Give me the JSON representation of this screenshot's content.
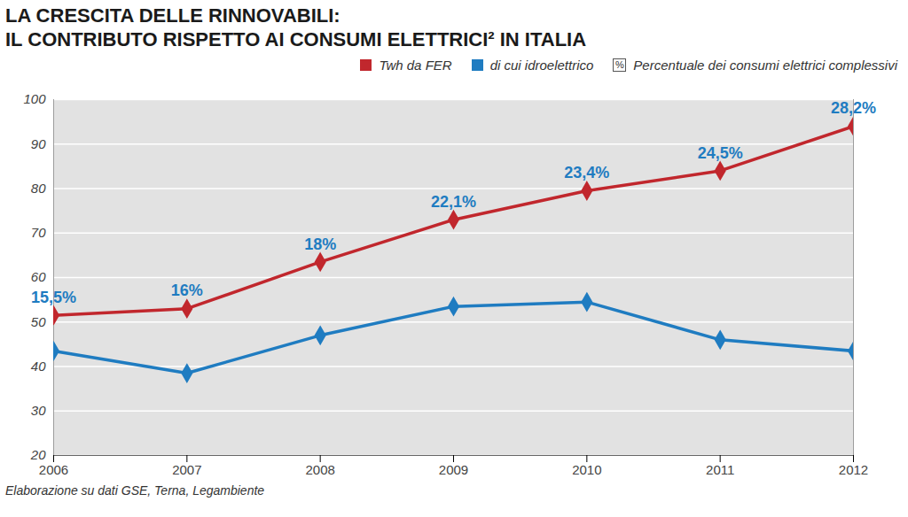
{
  "chart_data": {
    "type": "line",
    "title": "LA CRESCITA DELLE RINNOVABILI:\nIL CONTRIBUTO RISPETTO AI CONSUMI ELETTRICI² IN ITALIA",
    "caption": "Elaborazione su dati GSE, Terna, Legambiente",
    "x": [
      2006,
      2007,
      2008,
      2009,
      2010,
      2011,
      2012
    ],
    "xlim": [
      2006,
      2012
    ],
    "xticks": [
      2006,
      2007,
      2008,
      2009,
      2010,
      2011,
      2012
    ],
    "ylim": [
      20,
      100
    ],
    "yticks": [
      20,
      30,
      40,
      50,
      60,
      70,
      80,
      90,
      100
    ],
    "grid": true,
    "legend": "top-right",
    "series": [
      {
        "name": "Twh da FER",
        "color": "#c1272d",
        "marker": "diamond",
        "values": [
          51.5,
          53,
          63.5,
          73,
          79.5,
          84,
          94
        ],
        "percentages": [
          15.5,
          16,
          18,
          22.1,
          23.4,
          24.5,
          28.2
        ],
        "percentage_labels": [
          "15,5%",
          "16%",
          "18%",
          "22,1%",
          "23,4%",
          "24,5%",
          "28,2%"
        ]
      },
      {
        "name": "di cui idroelettrico",
        "color": "#1f7cc1",
        "marker": "diamond",
        "values": [
          43.5,
          38.5,
          47,
          53.5,
          54.5,
          46,
          43.5
        ]
      }
    ],
    "percentage_legend": {
      "symbol": "%",
      "label": "Percentuale dei consumi elettrici complessivi"
    }
  }
}
